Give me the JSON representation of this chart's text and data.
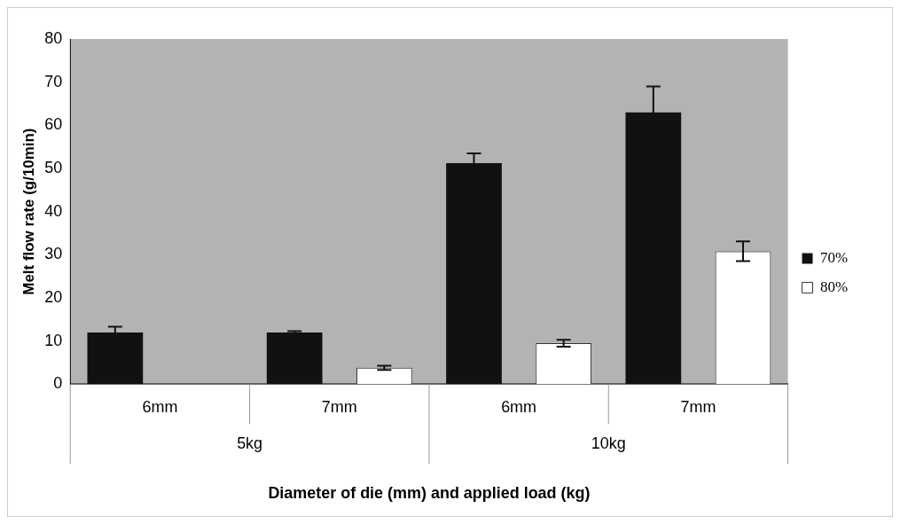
{
  "chart_data": {
    "type": "bar",
    "xlabel": "Diameter of die (mm) and applied load (kg)",
    "ylabel": "Melt flow rate (g/10min)",
    "categories": [
      "6mm",
      "7mm",
      "6mm",
      "7mm"
    ],
    "annotations": [
      "5kg",
      "10kg"
    ],
    "series": [
      {
        "name": "70%",
        "color": "#111111",
        "values": [
          12,
          12,
          51.2,
          63
        ],
        "errors": [
          1.3,
          0.3,
          2.3,
          6
        ]
      },
      {
        "name": "80%",
        "color": "#ffffff",
        "values": [
          null,
          3.8,
          9.5,
          30.8
        ],
        "errors": [
          null,
          0.5,
          0.8,
          2.3
        ]
      }
    ],
    "ylim": [
      0,
      80
    ],
    "yticks": [
      0,
      10,
      20,
      30,
      40,
      50,
      60,
      70,
      80
    ],
    "grid": false,
    "legend": "right"
  }
}
